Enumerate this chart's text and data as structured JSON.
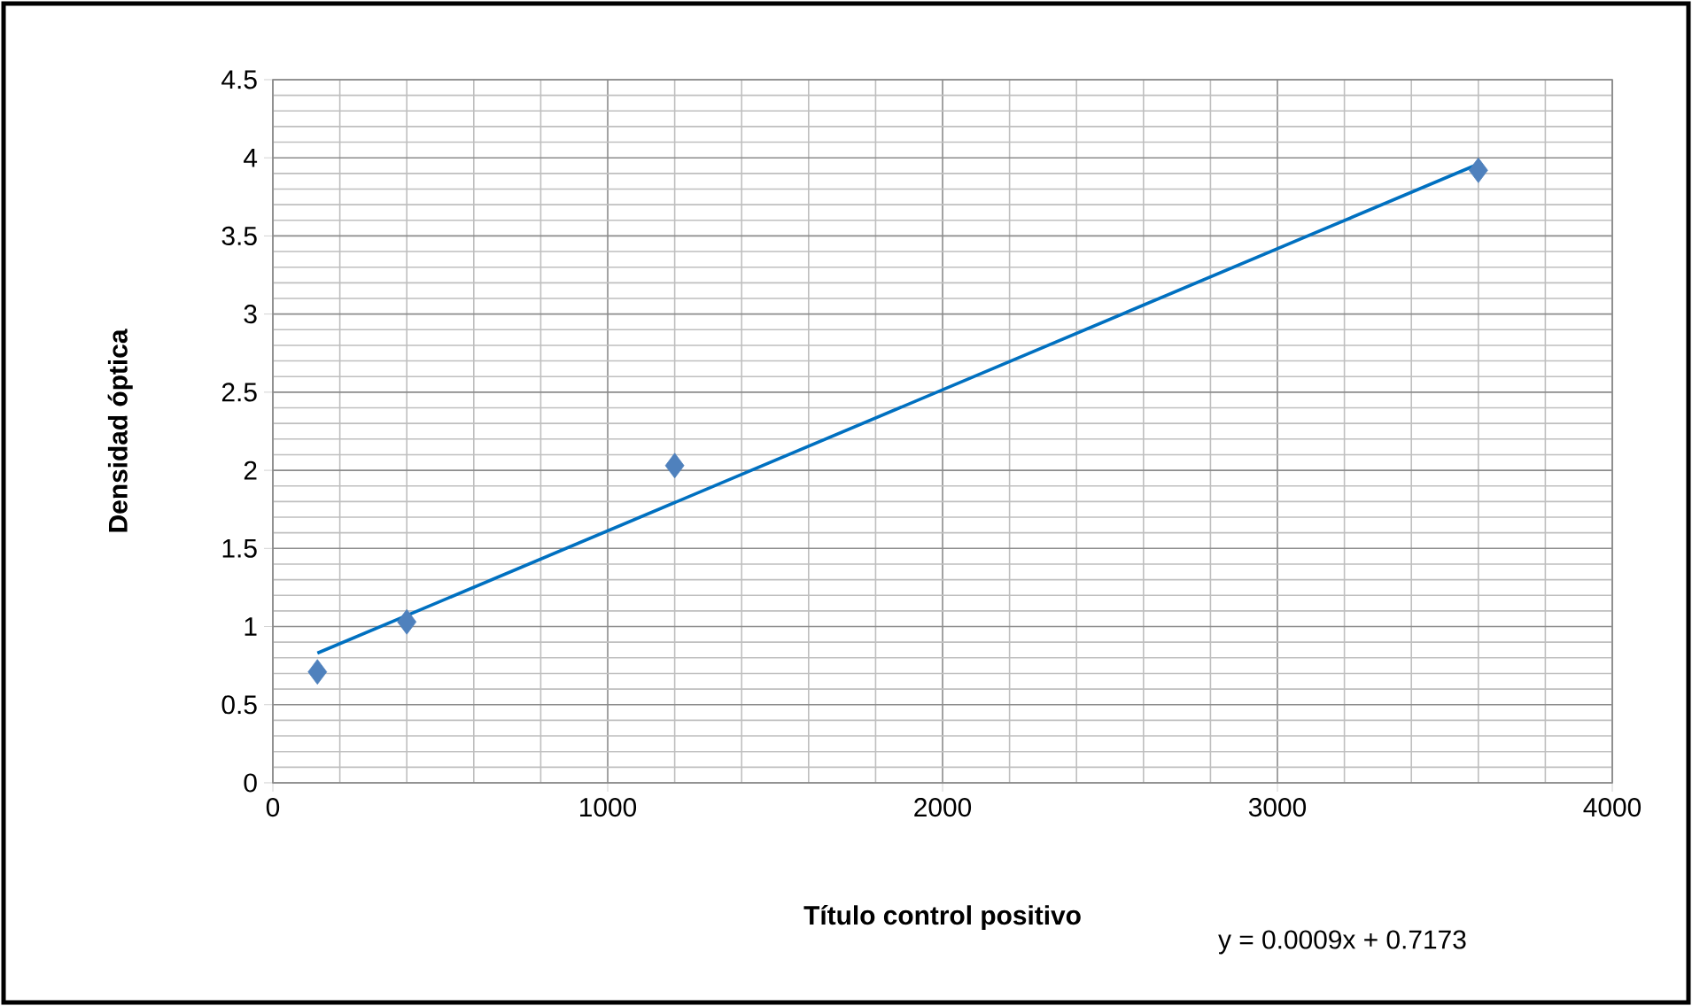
{
  "chart_data": {
    "type": "scatter",
    "xlabel": "Título control positivo",
    "ylabel": "Densidad óptica",
    "xlim": [
      0,
      4000
    ],
    "xticks": [
      0,
      1000,
      2000,
      3000,
      4000
    ],
    "ylim": [
      0,
      4.5
    ],
    "yticks": [
      0,
      0.5,
      1,
      1.5,
      2,
      2.5,
      3,
      3.5,
      4,
      4.5
    ],
    "grid": true,
    "annotations": [
      "y = 0.0009x + 0.7173"
    ],
    "series": [
      {
        "color": "#4f81bd",
        "marker": "diamond",
        "x": [
          133,
          400,
          1200,
          3600
        ],
        "values": [
          0.71,
          1.03,
          2.03,
          3.92
        ]
      },
      {
        "type": "line",
        "color": "#0070c0",
        "marker": "none",
        "line_style": "solid",
        "x": [
          133,
          3600
        ],
        "values": [
          0.83,
          3.96
        ]
      }
    ]
  }
}
